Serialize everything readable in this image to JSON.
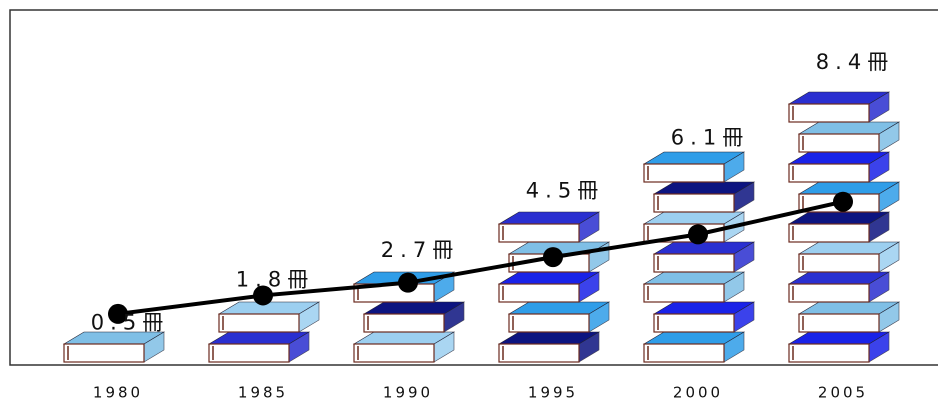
{
  "chart_data": {
    "type": "line",
    "categories": [
      "1980",
      "1985",
      "1990",
      "1995",
      "2000",
      "2005"
    ],
    "values": [
      0.5,
      1.8,
      2.7,
      4.5,
      6.1,
      8.4
    ],
    "value_labels": [
      "0.5冊",
      "1.8冊",
      "2.7冊",
      "4.5冊",
      "6.1冊",
      "8.4冊"
    ],
    "color": "#000000",
    "book_colors": [
      "#7fbfe6",
      "#2a2fd0",
      "#9ccff0",
      "#0d1480",
      "#2f9de8",
      "#1a22e8"
    ]
  }
}
